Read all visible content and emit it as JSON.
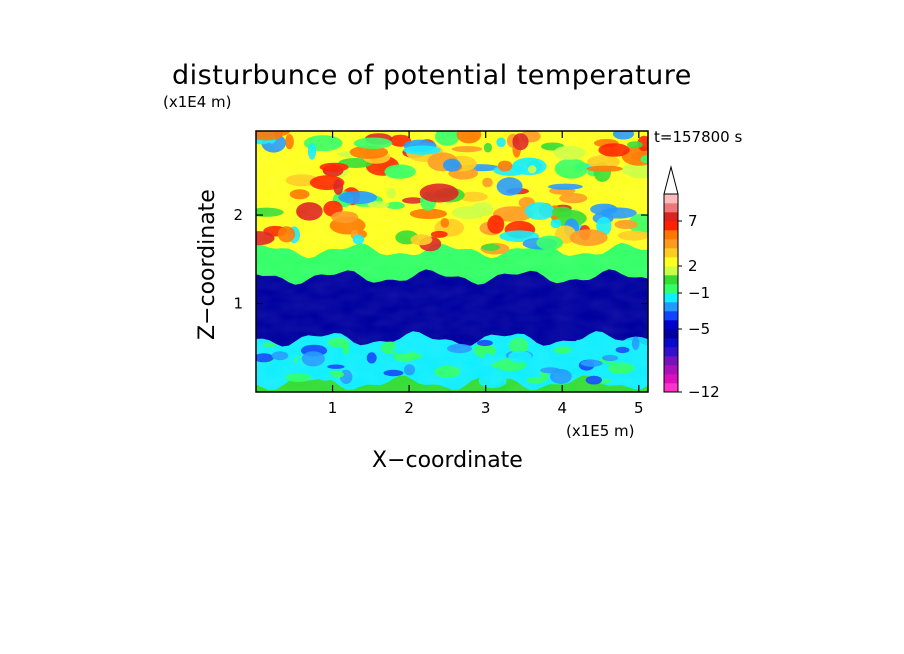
{
  "chart_data": {
    "type": "heatmap",
    "title": "disturbunce of potential temperature",
    "xlabel": "X−coordinate",
    "ylabel": "Z−coordinate",
    "x_unit": "(x1E5 m)",
    "y_unit": "(x1E4 m)",
    "annotation": "t=157800 s",
    "xlim": [
      0,
      5.12
    ],
    "ylim": [
      0,
      2.95
    ],
    "x_ticks": [
      1,
      2,
      3,
      4,
      5
    ],
    "x_tick_labels": [
      "1",
      "2",
      "3",
      "4",
      "5"
    ],
    "y_ticks": [
      1,
      2
    ],
    "y_tick_labels": [
      "1",
      "2"
    ],
    "colorbar": {
      "levels": [
        -12,
        -11,
        -10,
        -9,
        -8,
        -7,
        -6,
        -5,
        -4,
        -3,
        -2,
        -1,
        0,
        1,
        2,
        3,
        4,
        5,
        6,
        7,
        8,
        9,
        10
      ],
      "colors": [
        "#ff33cc",
        "#dd11bb",
        "#aa11bb",
        "#7711bb",
        "#3311cc",
        "#0a0acc",
        "#0000a0",
        "#0000cc",
        "#1144ff",
        "#2299ff",
        "#11eeff",
        "#33ff66",
        "#33dd33",
        "#ccff44",
        "#ffff22",
        "#ffcc22",
        "#ff9922",
        "#ff7700",
        "#ff2200",
        "#dd2222",
        "#ee7777",
        "#ffbbbb"
      ],
      "labels": [
        "7",
        "2",
        "−1",
        "−5",
        "−12"
      ],
      "label_values": [
        7,
        2,
        -1,
        -5,
        -12
      ],
      "extend": "max"
    },
    "description_fields": {
      "layers": [
        {
          "z_range": [
            0,
            0.1
          ],
          "approx_value": 0
        },
        {
          "z_range": [
            0.1,
            0.6
          ],
          "approx_value": -2
        },
        {
          "z_range": [
            0.6,
            1.3
          ],
          "approx_value": -6
        },
        {
          "z_range": [
            1.3,
            1.6
          ],
          "approx_value": -1
        },
        {
          "z_range": [
            1.6,
            2.95
          ],
          "approx_value": 2
        }
      ]
    }
  }
}
